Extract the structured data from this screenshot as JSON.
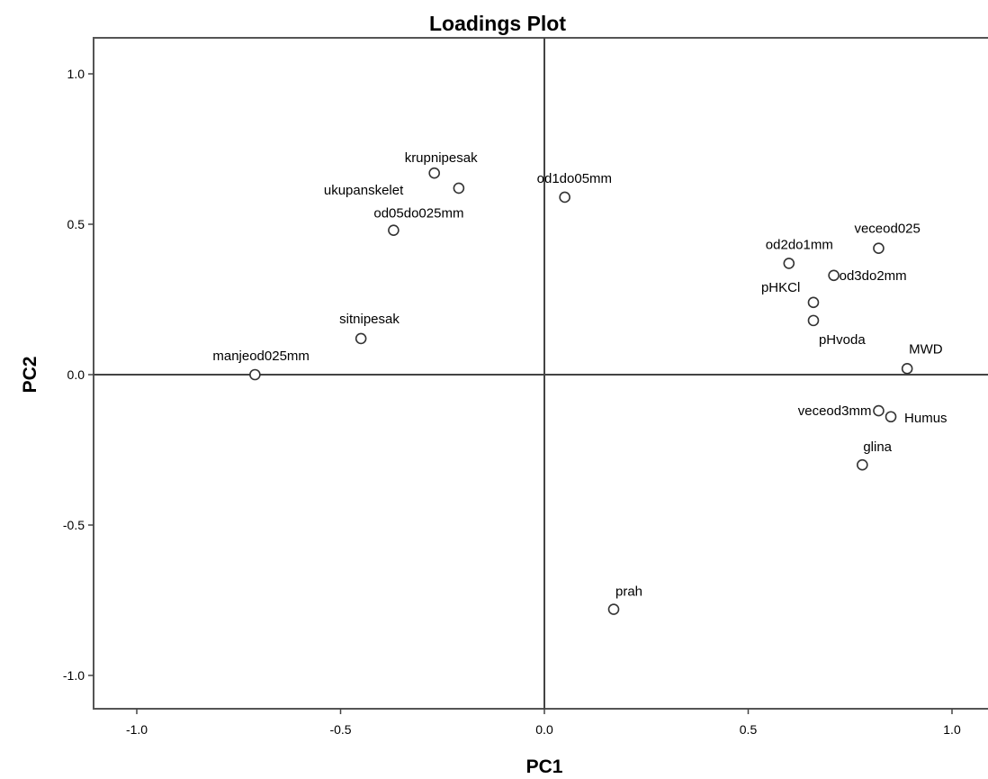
{
  "chart_data": {
    "type": "scatter",
    "title": "Loadings Plot",
    "xlabel": "PC1",
    "ylabel": "PC2",
    "xlim": [
      -1.1,
      1.1
    ],
    "ylim": [
      -1.1,
      1.1
    ],
    "x_ticks": [
      -1.0,
      -0.5,
      0.0,
      0.5,
      1.0
    ],
    "y_ticks": [
      -1.0,
      -0.5,
      0.0,
      0.5,
      1.0
    ],
    "x_tick_labels": [
      "-1.0",
      "-0.5",
      "0.0",
      "0.5",
      "1.0"
    ],
    "y_tick_labels": [
      "-1.0",
      "-0.5",
      "0.0",
      "0.5",
      "1.0"
    ],
    "grid": false,
    "reference_lines": {
      "x": 0,
      "y": 0
    },
    "marker": "open-circle",
    "points": [
      {
        "label": "krupnipesak",
        "x": -0.27,
        "y": 0.67
      },
      {
        "label": "ukupanskelet",
        "x": -0.21,
        "y": 0.62
      },
      {
        "label": "od05do025mm",
        "x": -0.37,
        "y": 0.48
      },
      {
        "label": "od1do05mm",
        "x": 0.05,
        "y": 0.59
      },
      {
        "label": "sitnipesak",
        "x": -0.45,
        "y": 0.12
      },
      {
        "label": "manjeod025mm",
        "x": -0.71,
        "y": 0.0
      },
      {
        "label": "veceod025",
        "x": 0.82,
        "y": 0.42
      },
      {
        "label": "od2do1mm",
        "x": 0.6,
        "y": 0.37
      },
      {
        "label": "od3do2mm",
        "x": 0.71,
        "y": 0.33
      },
      {
        "label": "pHKCl",
        "x": 0.66,
        "y": 0.24
      },
      {
        "label": "pHvoda",
        "x": 0.66,
        "y": 0.18
      },
      {
        "label": "MWD",
        "x": 0.89,
        "y": 0.02
      },
      {
        "label": "veceod3mm",
        "x": 0.82,
        "y": -0.12
      },
      {
        "label": "Humus",
        "x": 0.85,
        "y": -0.14
      },
      {
        "label": "glina",
        "x": 0.78,
        "y": -0.3
      },
      {
        "label": "prah",
        "x": 0.17,
        "y": -0.78
      }
    ]
  }
}
